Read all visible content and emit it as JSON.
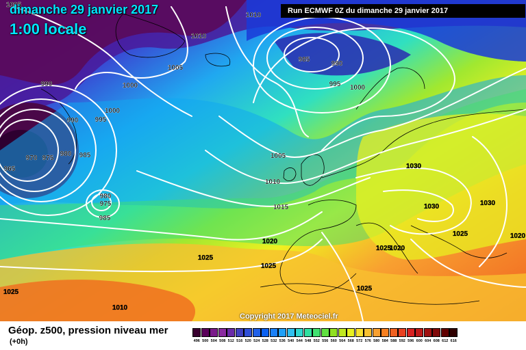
{
  "header": {
    "date": "dimanche 29 janvier 2017",
    "local_time": "1:00 locale",
    "run_info": "Run ECMWF 0Z du dimanche 29 janvier 2017"
  },
  "copyright": "Copyright 2017 Meteociel.fr",
  "legend": {
    "title": "Géop. z500, pression niveau mer",
    "step": "(+0h)",
    "scale_values": [
      "496",
      "500",
      "504",
      "508",
      "512",
      "516",
      "520",
      "524",
      "528",
      "532",
      "536",
      "540",
      "544",
      "548",
      "552",
      "556",
      "560",
      "564",
      "568",
      "572",
      "576",
      "580",
      "584",
      "588",
      "592",
      "596",
      "600",
      "604",
      "608",
      "612",
      "616"
    ],
    "scale_colors": [
      "#3a0030",
      "#5a005a",
      "#7a1a8a",
      "#8a2aa0",
      "#6a2aa8",
      "#4040c0",
      "#3050d8",
      "#2060e8",
      "#0a60f0",
      "#1a80f8",
      "#20a0f8",
      "#30c0f0",
      "#30d8d0",
      "#30e0a0",
      "#40e070",
      "#60e040",
      "#90e020",
      "#c0e820",
      "#e8f020",
      "#f8e030",
      "#f8c030",
      "#f8a030",
      "#f88020",
      "#f06020",
      "#e84020",
      "#d82020",
      "#c01818",
      "#a01010",
      "#800808",
      "#600000",
      "#300000"
    ]
  },
  "isobars": [
    {
      "text": "1010",
      "tone": "light"
    },
    {
      "text": "1005",
      "tone": "light"
    },
    {
      "text": "1010",
      "tone": "light"
    },
    {
      "text": "1005",
      "tone": "light"
    },
    {
      "text": "985",
      "tone": "light"
    },
    {
      "text": "990",
      "tone": "light"
    },
    {
      "text": "995",
      "tone": "light"
    },
    {
      "text": "1000",
      "tone": "light"
    },
    {
      "text": "990",
      "tone": "light"
    },
    {
      "text": "1000",
      "tone": "light"
    },
    {
      "text": "990",
      "tone": "light"
    },
    {
      "text": "995",
      "tone": "light"
    },
    {
      "text": "1000",
      "tone": "light"
    },
    {
      "text": "970",
      "tone": "light"
    },
    {
      "text": "975",
      "tone": "light"
    },
    {
      "text": "980",
      "tone": "light"
    },
    {
      "text": "985",
      "tone": "light"
    },
    {
      "text": "965",
      "tone": "light"
    },
    {
      "text": "1005",
      "tone": "light"
    },
    {
      "text": "1010",
      "tone": "light"
    },
    {
      "text": "980",
      "tone": "light"
    },
    {
      "text": "975",
      "tone": "light"
    },
    {
      "text": "985",
      "tone": "light"
    },
    {
      "text": "1015",
      "tone": "light"
    },
    {
      "text": "1020",
      "tone": "dark"
    },
    {
      "text": "1025",
      "tone": "dark"
    },
    {
      "text": "1030",
      "tone": "dark"
    },
    {
      "text": "1030",
      "tone": "dark"
    },
    {
      "text": "1030",
      "tone": "dark"
    },
    {
      "text": "1025",
      "tone": "dark"
    },
    {
      "text": "1020",
      "tone": "dark"
    },
    {
      "text": "1025",
      "tone": "dark"
    },
    {
      "text": "1020",
      "tone": "dark"
    },
    {
      "text": "1025",
      "tone": "dark"
    },
    {
      "text": "1010",
      "tone": "dark"
    },
    {
      "text": "1025",
      "tone": "dark"
    },
    {
      "text": "1025",
      "tone": "dark"
    }
  ]
}
